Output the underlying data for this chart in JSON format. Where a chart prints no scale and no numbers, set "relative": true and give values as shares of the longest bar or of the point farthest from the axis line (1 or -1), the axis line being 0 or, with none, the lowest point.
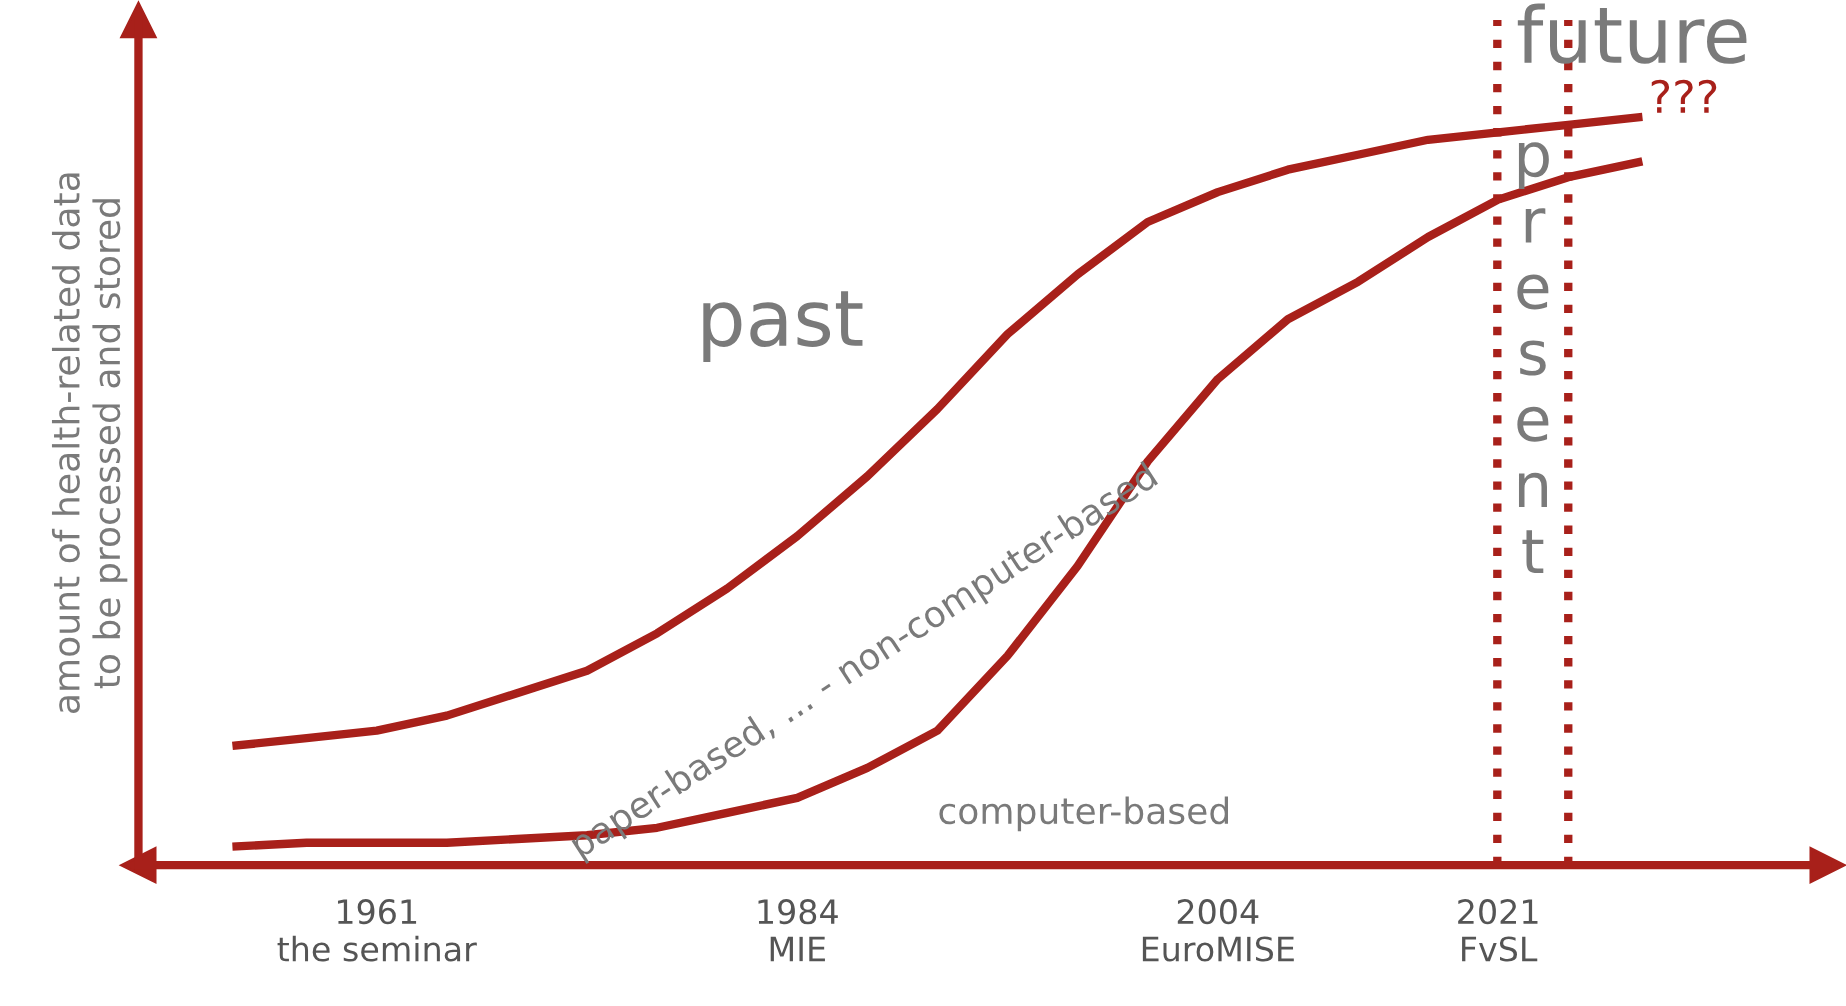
{
  "chart_data": {
    "type": "line",
    "relative": true,
    "ylabel": "amount of health-related data\nto be processed and stored",
    "categories": [
      null,
      null,
      "1961\nthe seminar",
      null,
      null,
      null,
      null,
      null,
      "1984\nMIE",
      null,
      null,
      null,
      null,
      null,
      "2004\nEuroMISE",
      null,
      null,
      null,
      "2021\nFvSL",
      null,
      null
    ],
    "series": [
      {
        "color": "#a8201a",
        "values": [
          0.16,
          0.17,
          0.18,
          0.2,
          0.23,
          0.26,
          0.31,
          0.37,
          0.44,
          0.52,
          0.61,
          0.71,
          0.79,
          0.86,
          0.9,
          0.93,
          0.95,
          0.97,
          0.98,
          0.99,
          1.0
        ]
      },
      {
        "color": "#a8201a",
        "values": [
          0.025,
          0.03,
          0.03,
          0.03,
          0.035,
          0.04,
          0.05,
          0.07,
          0.09,
          0.13,
          0.18,
          0.28,
          0.4,
          0.54,
          0.65,
          0.73,
          0.78,
          0.84,
          0.89,
          0.92,
          0.94
        ]
      }
    ],
    "annotations": [
      "past",
      "future",
      "???",
      "present",
      "paper-based, ... - non-computer-based",
      "computer-based"
    ],
    "line_style": "solid",
    "marker": "none"
  }
}
